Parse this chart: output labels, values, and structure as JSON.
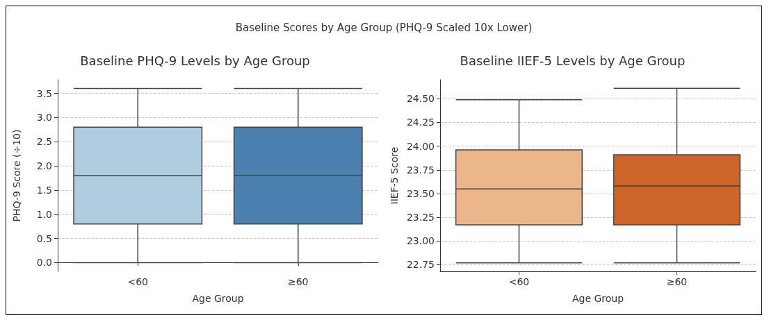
{
  "chart_data": [
    {
      "type": "box",
      "title": "Baseline PHQ-9 Levels by Age Group",
      "annotations": [
        "Baseline Scores by Age Group (PHQ-9 Scaled 10x Lower)"
      ],
      "xlabel": "Age Group",
      "ylabel": "PHQ-9 Score (÷10)",
      "categories": [
        "<60",
        "≥60"
      ],
      "colors": [
        "#b0cce1",
        "#4a81b0"
      ],
      "boxes": [
        {
          "low": 0,
          "q1": 0.8,
          "median": 1.8,
          "q3": 2.8,
          "high": 3.6
        },
        {
          "low": 0,
          "q1": 0.8,
          "median": 1.8,
          "q3": 2.8,
          "high": 3.6
        }
      ],
      "ylim": [
        -0.18,
        3.78
      ],
      "yticks": [
        {
          "value": 0,
          "label": "0.0"
        },
        {
          "value": 0.5,
          "label": "0.5"
        },
        {
          "value": 1,
          "label": "1.0"
        },
        {
          "value": 1.5,
          "label": "1.5"
        },
        {
          "value": 2,
          "label": "2.0"
        },
        {
          "value": 2.5,
          "label": "2.5"
        },
        {
          "value": 3,
          "label": "3.0"
        },
        {
          "value": 3.5,
          "label": "3.5"
        }
      ],
      "grid": "y"
    },
    {
      "type": "box",
      "title": "Baseline IIEF-5 Levels by Age Group",
      "xlabel": "Age Group",
      "ylabel": "IIEF-5 Score",
      "categories": [
        "<60",
        "≥60"
      ],
      "colors": [
        "#ebb68a",
        "#cd652b"
      ],
      "boxes": [
        {
          "low": 22.77,
          "q1": 23.17,
          "median": 23.55,
          "q3": 23.96,
          "high": 24.49
        },
        {
          "low": 22.77,
          "q1": 23.17,
          "median": 23.58,
          "q3": 23.91,
          "high": 24.61
        }
      ],
      "ylim": [
        22.68,
        24.7
      ],
      "yticks": [
        {
          "value": 22.75,
          "label": "22.75"
        },
        {
          "value": 23,
          "label": "23.00"
        },
        {
          "value": 23.25,
          "label": "23.25"
        },
        {
          "value": 23.5,
          "label": "23.50"
        },
        {
          "value": 23.75,
          "label": "23.75"
        },
        {
          "value": 24,
          "label": "24.00"
        },
        {
          "value": 24.25,
          "label": "24.25"
        },
        {
          "value": 24.5,
          "label": "24.50"
        }
      ],
      "grid": "y"
    }
  ]
}
